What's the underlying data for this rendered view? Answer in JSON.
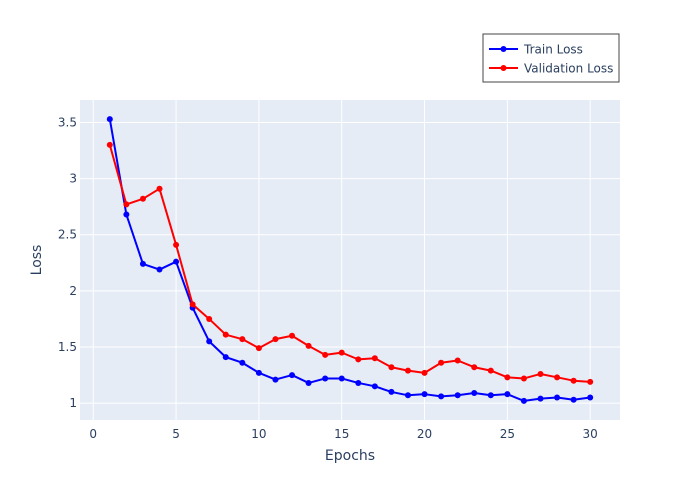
{
  "chart_data": {
    "type": "line",
    "title": "",
    "xlabel": "Epochs",
    "ylabel": "Loss",
    "xlim": [
      -0.8,
      31.8
    ],
    "ylim": [
      0.85,
      3.7
    ],
    "xticks": [
      0,
      5,
      10,
      15,
      20,
      25,
      30
    ],
    "xtick_labels": [
      "0",
      "5",
      "10",
      "15",
      "20",
      "25",
      "30"
    ],
    "yticks": [
      1,
      1.5,
      2,
      2.5,
      3,
      3.5
    ],
    "ytick_labels": [
      "1",
      "1.5",
      "2",
      "2.5",
      "3",
      "3.5"
    ],
    "grid": true,
    "legend_position": "top-right",
    "x": [
      1,
      2,
      3,
      4,
      5,
      6,
      7,
      8,
      9,
      10,
      11,
      12,
      13,
      14,
      15,
      16,
      17,
      18,
      19,
      20,
      21,
      22,
      23,
      24,
      25,
      26,
      27,
      28,
      29,
      30
    ],
    "series": [
      {
        "name": "Train Loss",
        "color": "#0000ff",
        "values": [
          3.53,
          2.68,
          2.24,
          2.19,
          2.26,
          1.85,
          1.55,
          1.41,
          1.36,
          1.27,
          1.21,
          1.25,
          1.18,
          1.22,
          1.22,
          1.18,
          1.15,
          1.1,
          1.07,
          1.08,
          1.06,
          1.07,
          1.09,
          1.07,
          1.08,
          1.02,
          1.04,
          1.05,
          1.03,
          1.05
        ]
      },
      {
        "name": "Validation Loss",
        "color": "#ff0000",
        "values": [
          3.3,
          2.77,
          2.82,
          2.91,
          2.41,
          1.88,
          1.75,
          1.61,
          1.57,
          1.49,
          1.57,
          1.6,
          1.51,
          1.43,
          1.45,
          1.39,
          1.4,
          1.32,
          1.29,
          1.27,
          1.36,
          1.38,
          1.32,
          1.29,
          1.23,
          1.22,
          1.26,
          1.23,
          1.2,
          1.19
        ]
      }
    ]
  }
}
